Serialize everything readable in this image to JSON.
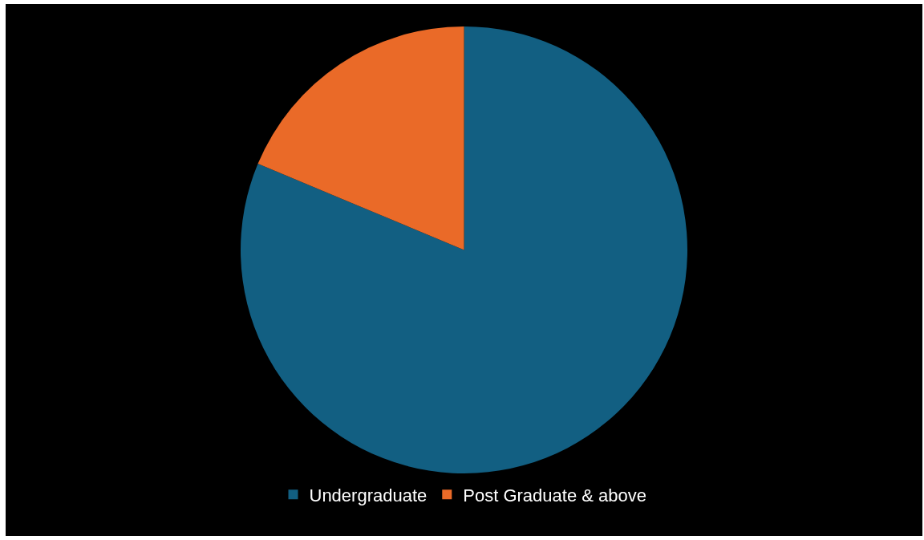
{
  "chart_data": {
    "type": "pie",
    "categories": [
      "Undergraduate",
      "Post Graduate & above"
    ],
    "values": [
      81.3,
      18.7
    ],
    "colors": [
      "#125f82",
      "#ea6a28"
    ],
    "legend": "bottom"
  }
}
